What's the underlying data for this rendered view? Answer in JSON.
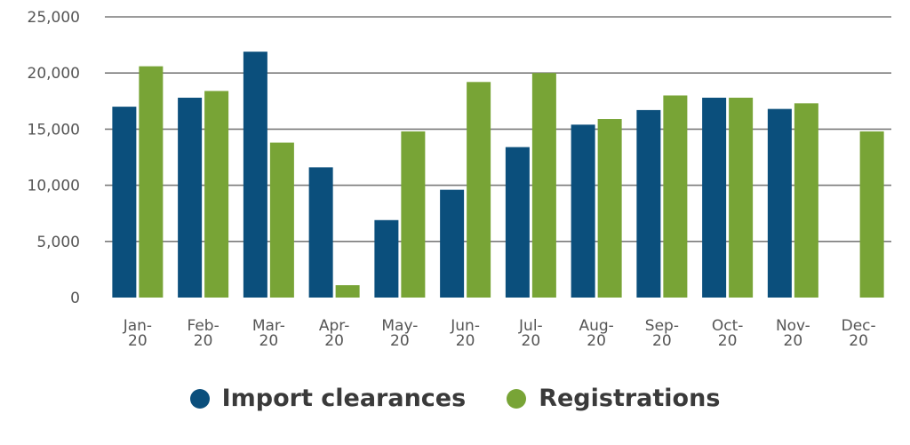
{
  "chart_data": {
    "type": "bar",
    "title": "",
    "xlabel": "",
    "ylabel": "",
    "ylim": [
      0,
      25000
    ],
    "yticks": [
      "0",
      "5,000",
      "10,000",
      "15,000",
      "20,000",
      "25,000"
    ],
    "grid": true,
    "legend_position": "bottom-center",
    "categories": [
      [
        "Jan-",
        "20"
      ],
      [
        "Feb-",
        "20"
      ],
      [
        "Mar-",
        "20"
      ],
      [
        "Apr-",
        "20"
      ],
      [
        "May-",
        "20"
      ],
      [
        "Jun-",
        "20"
      ],
      [
        "Jul-",
        "20"
      ],
      [
        "Aug-",
        "20"
      ],
      [
        "Sep-",
        "20"
      ],
      [
        "Oct-",
        "20"
      ],
      [
        "Nov-",
        "20"
      ],
      [
        "Dec-",
        "20"
      ]
    ],
    "series": [
      {
        "name": "Import clearances",
        "color": "#0b4f7c",
        "values": [
          17000,
          17800,
          21900,
          11600,
          6900,
          9600,
          13400,
          15400,
          16700,
          17800,
          16800,
          null
        ]
      },
      {
        "name": "Registrations",
        "color": "#78a436",
        "values": [
          20600,
          18400,
          13800,
          1100,
          14800,
          19200,
          20000,
          15900,
          18000,
          17800,
          17300,
          14800
        ]
      }
    ]
  }
}
